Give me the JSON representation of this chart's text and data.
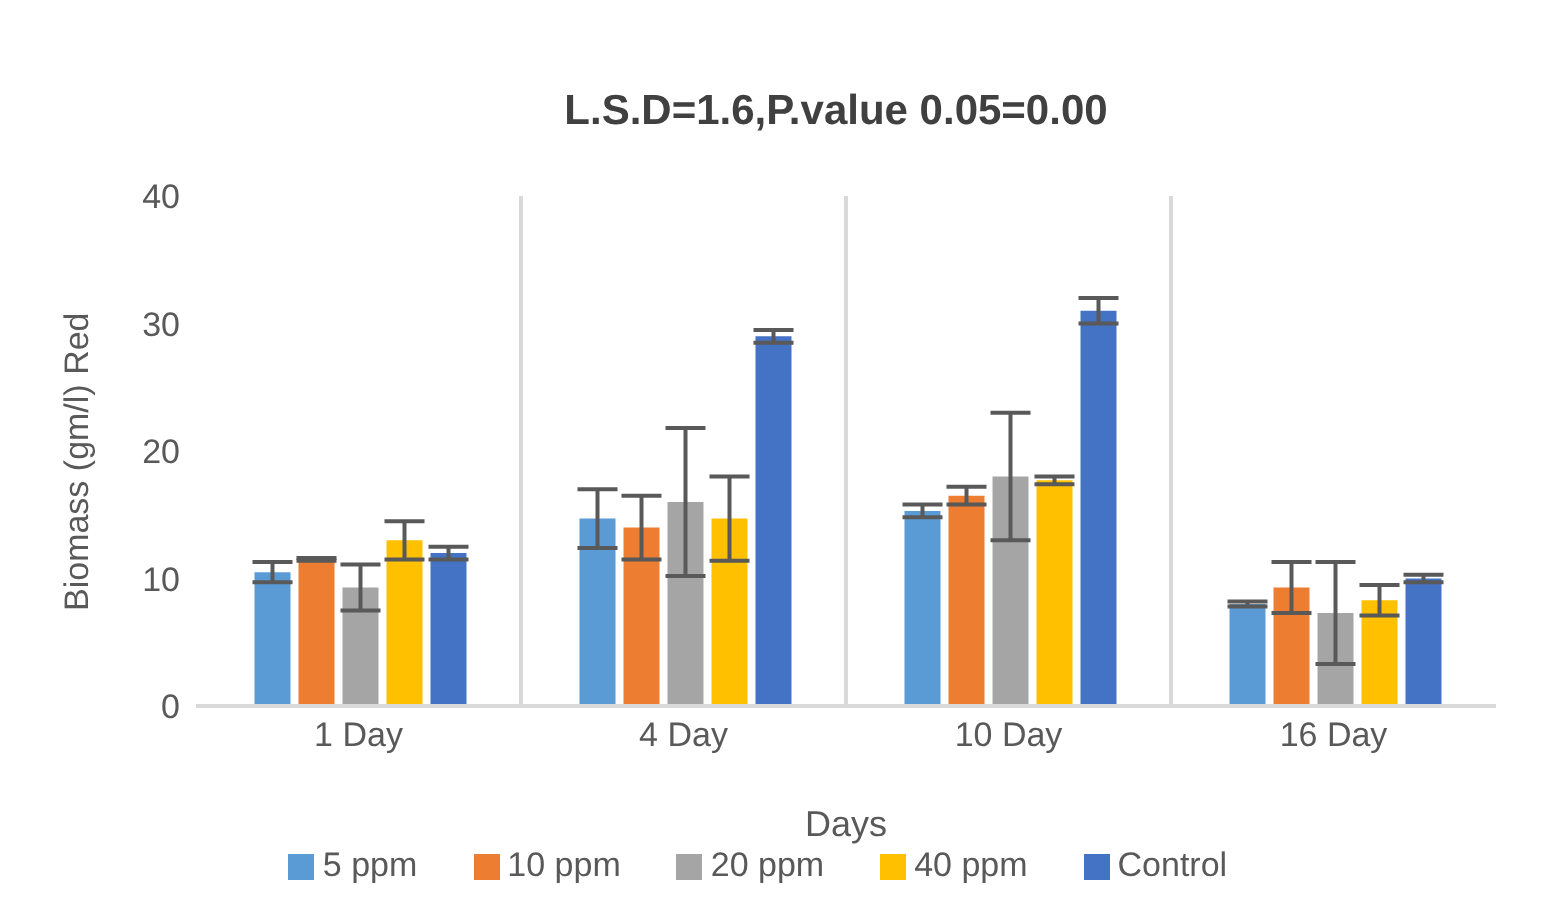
{
  "chart_data": {
    "type": "bar",
    "title": "L.S.D=1.6,P.value 0.05=0.00",
    "xlabel": "Days",
    "ylabel": "Biomass (gm/l) Red",
    "categories": [
      "1 Day",
      "4 Day",
      "10 Day",
      "16 Day"
    ],
    "series": [
      {
        "name": "5 ppm",
        "color": "#5b9bd5",
        "values": [
          10.5,
          14.7,
          15.3,
          8
        ],
        "errors": [
          0.8,
          2.3,
          0.5,
          0.2
        ]
      },
      {
        "name": "10 ppm",
        "color": "#ed7d31",
        "values": [
          11.5,
          14,
          16.5,
          9.3
        ],
        "errors": [
          0.1,
          2.5,
          0.7,
          2
        ]
      },
      {
        "name": "20 ppm",
        "color": "#a5a5a5",
        "values": [
          9.3,
          16,
          18,
          7.3
        ],
        "errors": [
          1.8,
          5.8,
          5,
          4
        ]
      },
      {
        "name": "40 ppm",
        "color": "#ffc000",
        "values": [
          13,
          14.7,
          17.7,
          8.3
        ],
        "errors": [
          1.5,
          3.3,
          0.3,
          1.2
        ]
      },
      {
        "name": "Control",
        "color": "#4472c4",
        "values": [
          12,
          29,
          31,
          10
        ],
        "errors": [
          0.5,
          0.5,
          1,
          0.3
        ]
      }
    ],
    "ylim": [
      0,
      40
    ],
    "yticks": [
      0,
      10,
      20,
      30,
      40
    ],
    "grid": "x",
    "legend": "bottom"
  }
}
